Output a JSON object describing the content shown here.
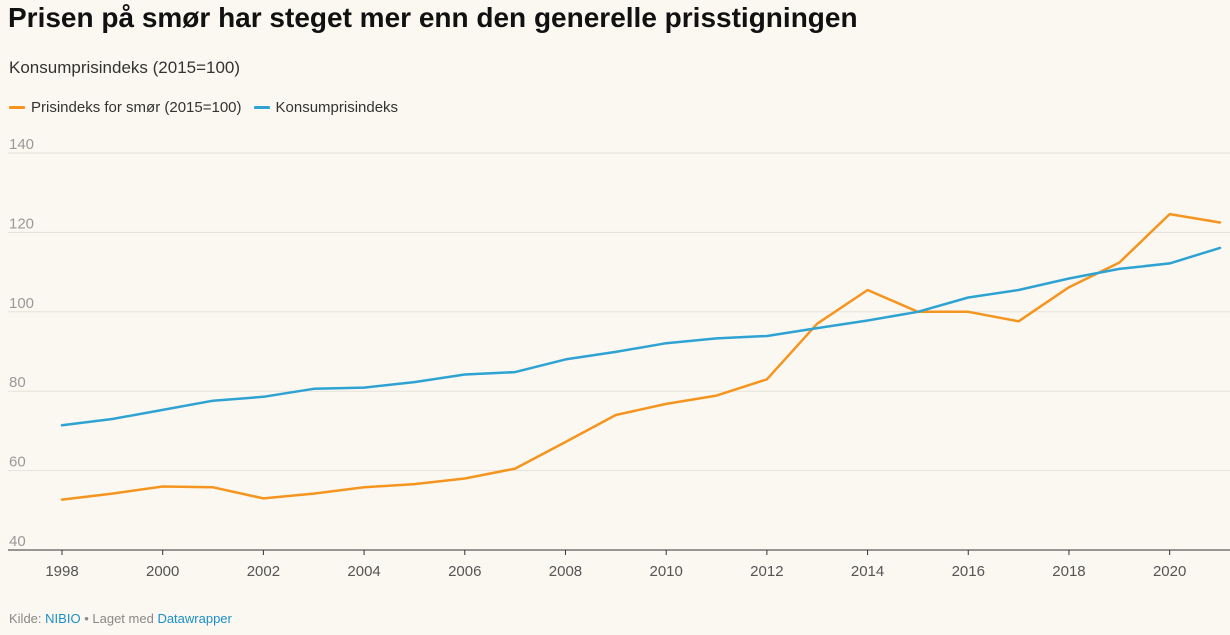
{
  "header": {
    "title": "Prisen på smør har steget mer enn den generelle prisstigningen",
    "subtitle": "Konsumprisindeks (2015=100)"
  },
  "legend": [
    {
      "label": "Prisindeks for smør (2015=100)",
      "color": "#f5951f"
    },
    {
      "label": "Konsumprisindeks",
      "color": "#2ea3d3"
    }
  ],
  "footer": {
    "source_prefix": "Kilde:",
    "source": "NIBIO",
    "separator": "•",
    "made_with_prefix": "Laget med",
    "made_with": "Datawrapper"
  },
  "chart_data": {
    "type": "line",
    "x": [
      1998,
      1999,
      2000,
      2001,
      2002,
      2003,
      2004,
      2005,
      2006,
      2007,
      2008,
      2009,
      2010,
      2011,
      2012,
      2013,
      2014,
      2015,
      2016,
      2017,
      2018,
      2019,
      2020,
      2021
    ],
    "series": [
      {
        "name": "Prisindeks for smør (2015=100)",
        "color": "#f5951f",
        "values": [
          52.7,
          54.2,
          56.0,
          55.8,
          53.0,
          54.2,
          55.8,
          56.6,
          58.0,
          60.5,
          67.2,
          74.0,
          76.8,
          78.9,
          83.0,
          97.0,
          105.5,
          100.0,
          100.0,
          97.6,
          106.2,
          112.4,
          124.6,
          122.5
        ]
      },
      {
        "name": "Konsumprisindeks",
        "color": "#2ea3d3",
        "values": [
          71.4,
          73.0,
          75.3,
          77.6,
          78.6,
          80.6,
          80.9,
          82.3,
          84.2,
          84.8,
          88.0,
          89.9,
          92.1,
          93.3,
          93.9,
          95.9,
          97.8,
          100.0,
          103.6,
          105.5,
          108.4,
          110.8,
          112.2,
          116.1
        ]
      }
    ],
    "xticks": [
      "1998",
      "2000",
      "2002",
      "2004",
      "2006",
      "2008",
      "2010",
      "2012",
      "2014",
      "2016",
      "2018",
      "2020"
    ],
    "yticks": [
      "40",
      "60",
      "80",
      "100",
      "120",
      "140"
    ],
    "xlim": [
      1998,
      2021
    ],
    "ylim": [
      40,
      140
    ],
    "grid": true,
    "legend_position": "top-left",
    "title": "Prisen på smør har steget mer enn den generelle prisstigningen",
    "xlabel": "",
    "ylabel": ""
  }
}
